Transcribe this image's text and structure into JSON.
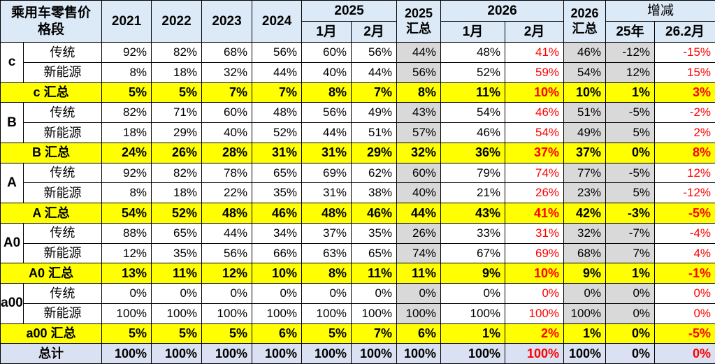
{
  "colors": {
    "header_bg": "#DCE9F6",
    "grand_total_row_bg": "#D9E1F2",
    "subtotal_row_bg": "#FFFF00",
    "summary_column_bg": "#D9D9D9",
    "highlight_text": "#FF0000",
    "border": "#000000"
  },
  "chart_data": {
    "type": "table",
    "title": "乘用车零售价格段",
    "header": {
      "years": [
        "2021",
        "2022",
        "2023",
        "2024"
      ],
      "g2025": "2025",
      "g2025_months": [
        "1月",
        "2月"
      ],
      "t2025": "2025 汇总",
      "g2026": "2026",
      "g2026_months": [
        "1月",
        "2月"
      ],
      "t2026": "2026 汇总",
      "gchange": "增减",
      "change_cols": [
        "25年",
        "26.2月"
      ]
    },
    "styles": {
      "gray_value_columns": [
        6,
        9,
        10
      ],
      "red_value_columns": [
        8,
        11
      ]
    },
    "segments": [
      {
        "name": "c",
        "rows": [
          {
            "label": "传统",
            "values": [
              "92%",
              "82%",
              "68%",
              "56%",
              "60%",
              "56%",
              "44%",
              "48%",
              "41%",
              "46%",
              "-12%",
              "-15%"
            ]
          },
          {
            "label": "新能源",
            "values": [
              "8%",
              "18%",
              "32%",
              "44%",
              "40%",
              "44%",
              "56%",
              "52%",
              "59%",
              "54%",
              "12%",
              "15%"
            ]
          }
        ],
        "total": {
          "label": "c 汇总",
          "values": [
            "5%",
            "5%",
            "7%",
            "7%",
            "8%",
            "7%",
            "8%",
            "11%",
            "10%",
            "10%",
            "1%",
            "3%"
          ]
        }
      },
      {
        "name": "B",
        "rows": [
          {
            "label": "传统",
            "values": [
              "82%",
              "71%",
              "60%",
              "48%",
              "56%",
              "49%",
              "43%",
              "54%",
              "46%",
              "51%",
              "-5%",
              "-2%"
            ]
          },
          {
            "label": "新能源",
            "values": [
              "18%",
              "29%",
              "40%",
              "52%",
              "44%",
              "51%",
              "57%",
              "46%",
              "54%",
              "49%",
              "5%",
              "2%"
            ]
          }
        ],
        "total": {
          "label": "B 汇总",
          "values": [
            "24%",
            "26%",
            "28%",
            "31%",
            "31%",
            "29%",
            "32%",
            "36%",
            "37%",
            "37%",
            "0%",
            "8%"
          ]
        }
      },
      {
        "name": "A",
        "rows": [
          {
            "label": "传统",
            "values": [
              "92%",
              "82%",
              "78%",
              "65%",
              "69%",
              "62%",
              "60%",
              "79%",
              "74%",
              "77%",
              "-5%",
              "12%"
            ]
          },
          {
            "label": "新能源",
            "values": [
              "8%",
              "18%",
              "22%",
              "35%",
              "31%",
              "38%",
              "40%",
              "21%",
              "26%",
              "23%",
              "5%",
              "-12%"
            ]
          }
        ],
        "total": {
          "label": "A 汇总",
          "values": [
            "54%",
            "52%",
            "48%",
            "46%",
            "48%",
            "46%",
            "44%",
            "43%",
            "41%",
            "42%",
            "-3%",
            "-5%"
          ]
        }
      },
      {
        "name": "A0",
        "rows": [
          {
            "label": "传统",
            "values": [
              "88%",
              "65%",
              "44%",
              "34%",
              "37%",
              "35%",
              "26%",
              "33%",
              "31%",
              "32%",
              "-7%",
              "-4%"
            ]
          },
          {
            "label": "新能源",
            "values": [
              "12%",
              "35%",
              "56%",
              "66%",
              "63%",
              "65%",
              "74%",
              "67%",
              "69%",
              "68%",
              "7%",
              "4%"
            ]
          }
        ],
        "total": {
          "label": "A0 汇总",
          "values": [
            "13%",
            "11%",
            "12%",
            "10%",
            "8%",
            "11%",
            "11%",
            "9%",
            "10%",
            "9%",
            "1%",
            "-1%"
          ]
        }
      },
      {
        "name": "a00",
        "rows": [
          {
            "label": "传统",
            "values": [
              "0%",
              "0%",
              "0%",
              "0%",
              "0%",
              "0%",
              "0%",
              "0%",
              "0%",
              "0%",
              "0%",
              "0%"
            ]
          },
          {
            "label": "新能源",
            "values": [
              "100%",
              "100%",
              "100%",
              "100%",
              "100%",
              "100%",
              "100%",
              "100%",
              "100%",
              "100%",
              "0%",
              "0%"
            ]
          }
        ],
        "total": {
          "label": "a00 汇总",
          "values": [
            "5%",
            "5%",
            "5%",
            "6%",
            "5%",
            "7%",
            "6%",
            "1%",
            "2%",
            "1%",
            "0%",
            "-5%"
          ]
        }
      }
    ],
    "grand_total": {
      "label": "总计",
      "values": [
        "100%",
        "100%",
        "100%",
        "100%",
        "100%",
        "100%",
        "100%",
        "100%",
        "100%",
        "100%",
        "0%",
        "0%"
      ]
    }
  }
}
